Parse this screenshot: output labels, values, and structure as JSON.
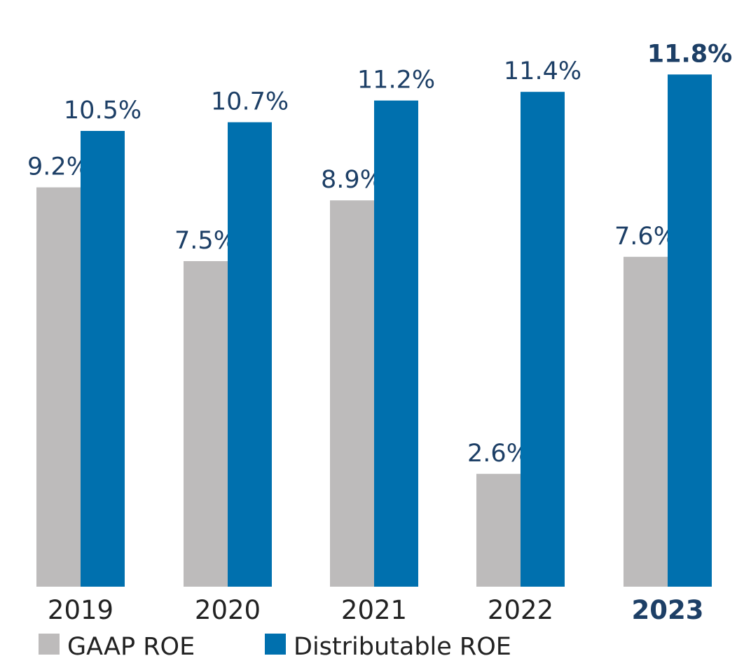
{
  "chart_data": {
    "type": "bar",
    "categories": [
      "2019",
      "2020",
      "2021",
      "2022",
      "2023"
    ],
    "highlight_category": "2023",
    "series": [
      {
        "name": "GAAP ROE",
        "color": "#bdbbbb",
        "values": [
          9.2,
          7.5,
          8.9,
          2.6,
          7.6
        ],
        "labels": [
          "9.2%",
          "7.5%",
          "8.9%",
          "2.6%",
          "7.6%"
        ]
      },
      {
        "name": "Distributable ROE",
        "color": "#0070ae",
        "values": [
          10.5,
          10.7,
          11.2,
          11.4,
          11.8
        ],
        "labels": [
          "10.5%",
          "10.7%",
          "11.2%",
          "11.4%",
          "11.8%"
        ]
      }
    ],
    "title": "",
    "xlabel": "",
    "ylabel": "",
    "ylim": [
      0,
      13.5
    ],
    "grid": false,
    "legend_position": "bottom-left",
    "label_color": "#1d3f66"
  }
}
